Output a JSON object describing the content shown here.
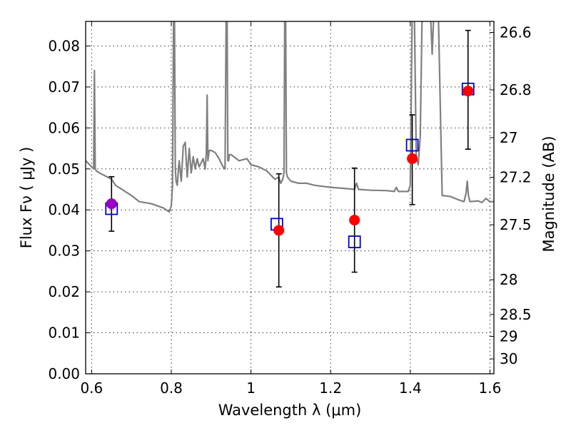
{
  "chart_data": {
    "type": "scatter",
    "xlabel": "Wavelength  λ (μm)",
    "ylabel": "Flux  Fν  ( μJy )",
    "ylabel_right": "Magnitude (AB)",
    "xlim": [
      0.585,
      1.61
    ],
    "ylim": [
      0.0,
      0.086
    ],
    "grid": true,
    "x_ticks": [
      0.6,
      0.8,
      1.0,
      1.2,
      1.4,
      1.6
    ],
    "x_tick_labels": [
      "0.6",
      "0.8",
      "1",
      "1.2",
      "1.4",
      "1.6"
    ],
    "y_ticks": [
      0.0,
      0.01,
      0.02,
      0.03,
      0.04,
      0.05,
      0.06,
      0.07,
      0.08
    ],
    "y_tick_labels": [
      "0.00",
      "0.01",
      "0.02",
      "0.03",
      "0.04",
      "0.05",
      "0.06",
      "0.07",
      "0.08"
    ],
    "right_ticks": [
      {
        "mag": 26.6,
        "label": "26.6"
      },
      {
        "mag": 26.8,
        "label": "26.8"
      },
      {
        "mag": 27.0,
        "label": "27"
      },
      {
        "mag": 27.2,
        "label": "27.2"
      },
      {
        "mag": 27.5,
        "label": "27.5"
      },
      {
        "mag": 28.0,
        "label": "28"
      },
      {
        "mag": 28.5,
        "label": "28.5"
      },
      {
        "mag": 29.0,
        "label": "29"
      },
      {
        "mag": 30.0,
        "label": "30"
      }
    ],
    "series": [
      {
        "kind": "model_spectrum",
        "color": "#808080",
        "x": [
          0.585,
          0.6,
          0.605,
          0.607,
          0.609,
          0.612,
          0.62,
          0.65,
          0.66,
          0.7,
          0.72,
          0.75,
          0.78,
          0.795,
          0.8,
          0.803,
          0.806,
          0.808,
          0.81,
          0.812,
          0.815,
          0.818,
          0.82,
          0.825,
          0.828,
          0.83,
          0.835,
          0.84,
          0.845,
          0.85,
          0.855,
          0.86,
          0.865,
          0.87,
          0.875,
          0.88,
          0.885,
          0.888,
          0.89,
          0.892,
          0.895,
          0.9,
          0.91,
          0.92,
          0.93,
          0.935,
          0.938,
          0.94,
          0.942,
          0.944,
          0.946,
          0.95,
          0.97,
          0.99,
          1.0,
          1.02,
          1.04,
          1.06,
          1.07,
          1.075,
          1.08,
          1.083,
          1.085,
          1.087,
          1.089,
          1.092,
          1.1,
          1.12,
          1.14,
          1.16,
          1.2,
          1.24,
          1.26,
          1.265,
          1.27,
          1.3,
          1.34,
          1.36,
          1.365,
          1.37,
          1.395,
          1.4,
          1.405,
          1.41,
          1.415,
          1.42,
          1.425,
          1.43,
          1.435,
          1.44,
          1.445,
          1.45,
          1.455,
          1.46,
          1.465,
          1.47,
          1.48,
          1.5,
          1.52,
          1.535,
          1.54,
          1.543,
          1.546,
          1.55,
          1.57,
          1.58,
          1.59,
          1.6,
          1.61
        ],
        "y": [
          0.052,
          0.0505,
          0.05,
          0.074,
          0.05,
          0.0495,
          0.049,
          0.0475,
          0.046,
          0.0435,
          0.042,
          0.0415,
          0.0405,
          0.0395,
          0.041,
          0.046,
          0.09,
          0.09,
          0.05,
          0.047,
          0.046,
          0.05,
          0.052,
          0.047,
          0.052,
          0.0555,
          0.0565,
          0.048,
          0.055,
          0.049,
          0.053,
          0.05,
          0.0525,
          0.0505,
          0.0515,
          0.0525,
          0.05,
          0.054,
          0.068,
          0.052,
          0.0545,
          0.0545,
          0.054,
          0.0525,
          0.0505,
          0.05,
          0.09,
          0.09,
          0.052,
          0.052,
          0.0535,
          0.0535,
          0.052,
          0.0525,
          0.051,
          0.0505,
          0.0495,
          0.0475,
          0.048,
          0.0465,
          0.0475,
          0.049,
          0.09,
          0.09,
          0.049,
          0.048,
          0.047,
          0.0465,
          0.0465,
          0.046,
          0.0455,
          0.0452,
          0.045,
          0.0465,
          0.045,
          0.0448,
          0.0447,
          0.0445,
          0.0455,
          0.0445,
          0.0445,
          0.046,
          0.09,
          0.09,
          0.053,
          0.051,
          0.058,
          0.09,
          0.09,
          0.09,
          0.09,
          0.09,
          0.078,
          0.09,
          0.09,
          0.09,
          0.0435,
          0.0433,
          0.0425,
          0.042,
          0.044,
          0.047,
          0.0435,
          0.042,
          0.0422,
          0.0418,
          0.0428,
          0.042,
          0.042
        ]
      },
      {
        "kind": "observed",
        "marker": "circle",
        "color": "#ff0000",
        "x": [
          0.65,
          1.07,
          1.26,
          1.405,
          1.545
        ],
        "y": [
          0.0415,
          0.035,
          0.0375,
          0.0525,
          0.069
        ]
      },
      {
        "kind": "model_photometry",
        "marker": "open-square",
        "color": "#0000cc",
        "x": [
          0.65,
          1.065,
          1.26,
          1.405,
          1.545
        ],
        "y": [
          0.0403,
          0.0365,
          0.0322,
          0.0558,
          0.0695
        ]
      }
    ],
    "error_bars": {
      "color": "#000000",
      "x": [
        0.65,
        1.07,
        1.26,
        1.405,
        1.545
      ],
      "low": [
        0.0348,
        0.0212,
        0.0248,
        0.0413,
        0.0548
      ],
      "high": [
        0.0481,
        0.0488,
        0.0502,
        0.0632,
        0.0838
      ]
    },
    "highlight_point": {
      "x": 0.65,
      "y": 0.0415,
      "color": "#9b00c8"
    }
  }
}
